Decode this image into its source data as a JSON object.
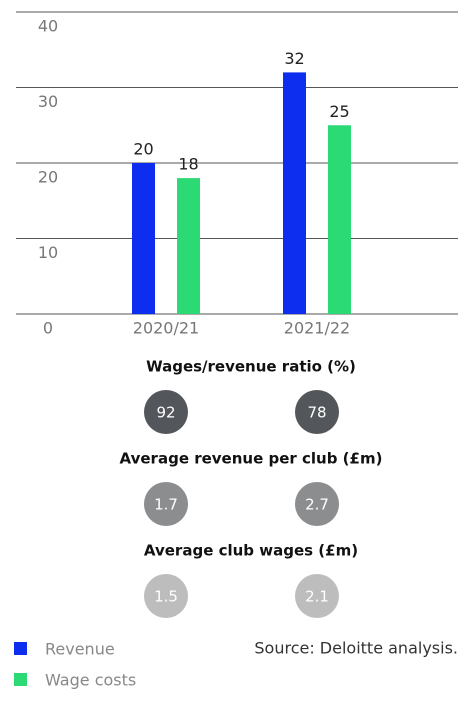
{
  "chart_data": {
    "type": "bar",
    "categories": [
      "2020/21",
      "2021/22"
    ],
    "series": [
      {
        "name": "Revenue",
        "color": "#0d2eef",
        "values": [
          20,
          32
        ]
      },
      {
        "name": "Wage costs",
        "color": "#2bd975",
        "values": [
          18,
          25
        ]
      }
    ],
    "ylim": [
      0,
      40
    ],
    "yticks": [
      0,
      10,
      20,
      30,
      40
    ],
    "grid": true
  },
  "metrics": [
    {
      "title": "Wages/revenue ratio (%)",
      "color": "#53565a",
      "values": [
        92,
        78
      ]
    },
    {
      "title": "Average revenue per club (£m)",
      "color": "#8c8d8f",
      "values": [
        1.7,
        2.7
      ]
    },
    {
      "title": "Average club wages (£m)",
      "color": "#bdbdbd",
      "values": [
        1.5,
        2.1
      ]
    }
  ],
  "source": "Source: Deloitte analysis."
}
